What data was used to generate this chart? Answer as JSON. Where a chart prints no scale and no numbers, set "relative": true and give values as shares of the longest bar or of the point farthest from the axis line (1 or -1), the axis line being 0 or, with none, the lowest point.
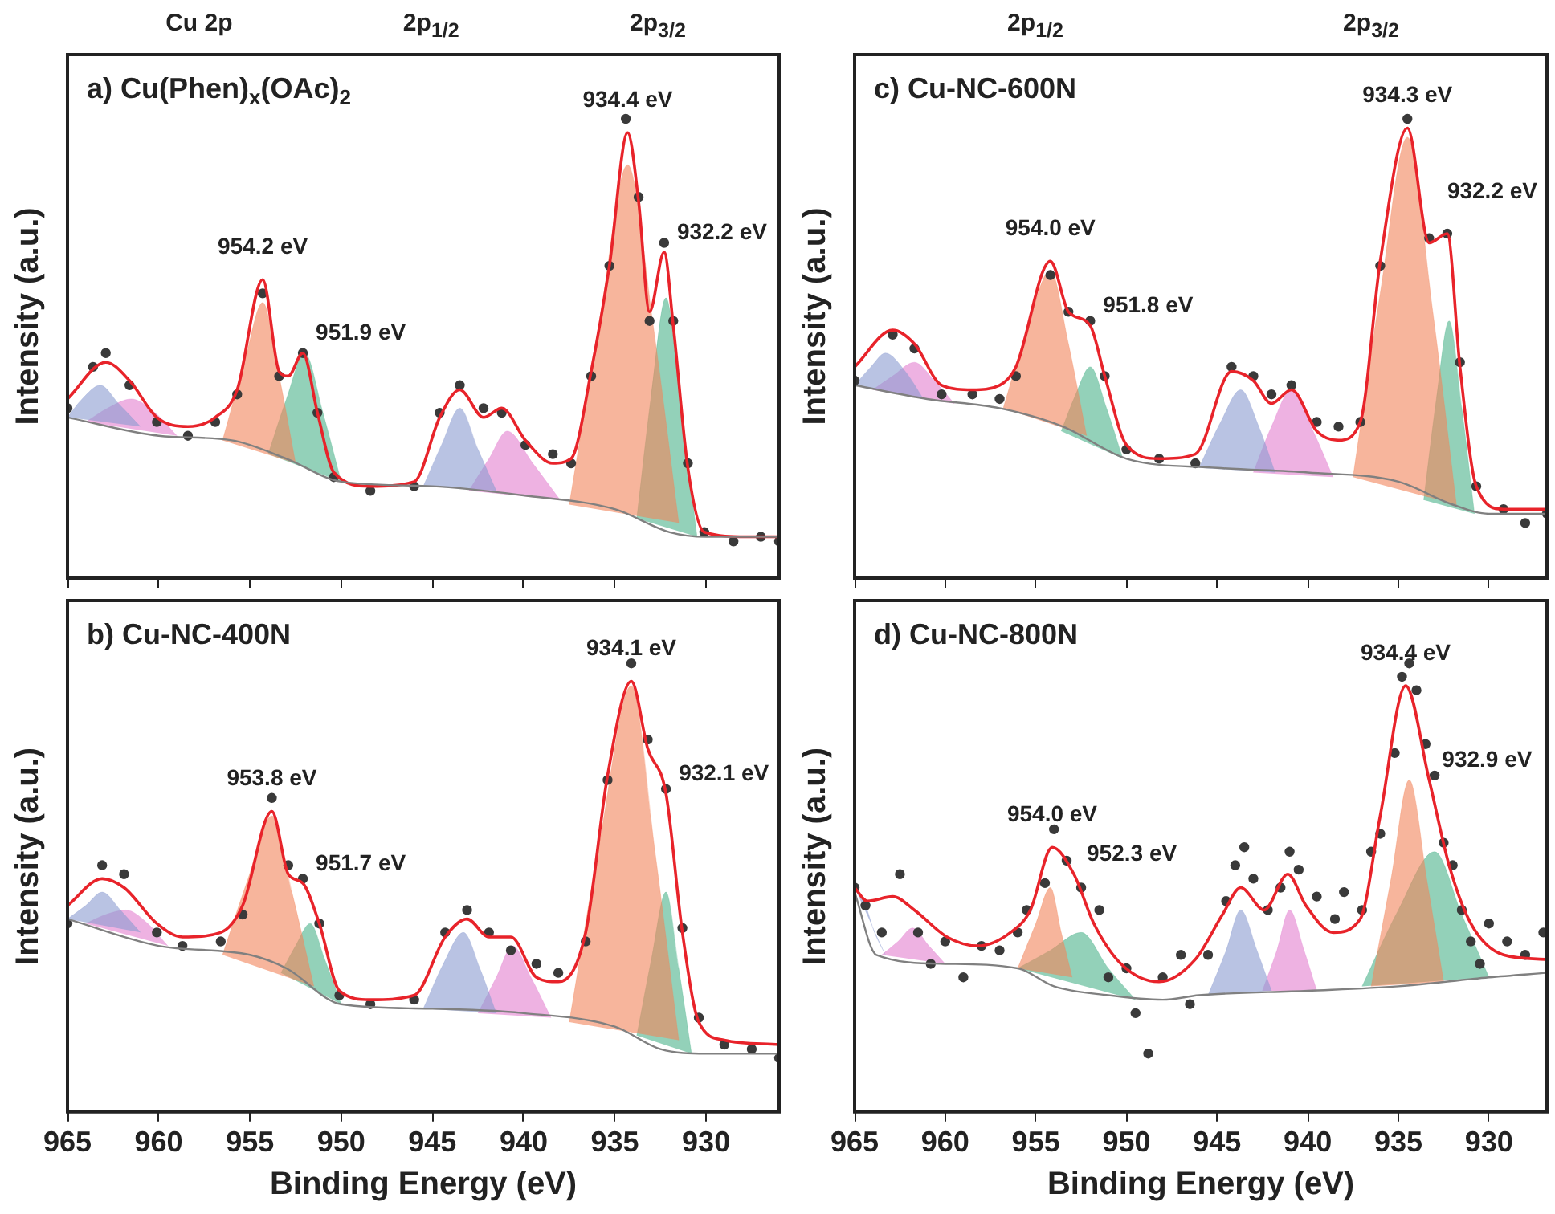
{
  "chart_data": [
    {
      "type": "line",
      "title": "a) Cu(Phen)$_{x}$(OAc)$_{2}$",
      "ylabel": "Intensity (a.u.)",
      "relative": true,
      "tick_labels": false,
      "xlim": [
        965,
        926
      ],
      "xticks": [
        965,
        960,
        955,
        950,
        945,
        940,
        935,
        930
      ],
      "annotations": [
        "Cu 2p",
        "2p$_{1/2}$",
        "2p$_{3/2}$",
        {
          "text": "954.2 eV",
          "x": 954.3,
          "y": 0.65
        },
        {
          "text": "951.9 eV",
          "x": 952.1,
          "y": 0.49
        },
        {
          "text": "934.4 eV",
          "x": 934.3,
          "y": 0.97
        },
        {
          "text": "932.2 eV",
          "x": 932.3,
          "y": 0.71
        }
      ],
      "series": [
        {
          "type": "line",
          "color": "#808080",
          "x": [
            965,
            960,
            956,
            953,
            950,
            945,
            940,
            935,
            932,
            930,
            926
          ],
          "values": [
            0.35,
            0.31,
            0.3,
            0.26,
            0.21,
            0.2,
            0.18,
            0.15,
            0.1,
            0.09,
            0.09
          ]
        },
        {
          "type": "area",
          "color": "#8a9bd0",
          "x": [
            965,
            964.2,
            963.2,
            962.2,
            961
          ],
          "values": [
            0.35,
            0.39,
            0.42,
            0.38,
            0.33
          ]
        },
        {
          "type": "area",
          "color": "#e27fcf",
          "x": [
            964,
            962.8,
            961.5,
            960.2,
            959
          ],
          "values": [
            0.34,
            0.37,
            0.39,
            0.36,
            0.31
          ]
        },
        {
          "type": "area",
          "color": "#f2835a",
          "x": [
            956.5,
            955.3,
            954.3,
            953.4,
            952.5
          ],
          "values": [
            0.3,
            0.47,
            0.6,
            0.44,
            0.25
          ]
        },
        {
          "type": "area",
          "color": "#4bb38a",
          "x": [
            954,
            953,
            952,
            951,
            950
          ],
          "values": [
            0.27,
            0.39,
            0.49,
            0.36,
            0.21
          ]
        },
        {
          "type": "area",
          "color": "#8a9bd0",
          "x": [
            945.5,
            944.5,
            943.5,
            942.5,
            941.5
          ],
          "values": [
            0.2,
            0.29,
            0.37,
            0.28,
            0.19
          ]
        },
        {
          "type": "area",
          "color": "#e27fcf",
          "x": [
            943,
            941.9,
            940.9,
            939.5,
            938
          ],
          "values": [
            0.19,
            0.26,
            0.32,
            0.25,
            0.17
          ]
        },
        {
          "type": "area",
          "color": "#f2835a",
          "x": [
            937.5,
            935.8,
            934.3,
            932.9,
            931.5
          ],
          "values": [
            0.16,
            0.57,
            0.9,
            0.55,
            0.12
          ]
        },
        {
          "type": "area",
          "color": "#4bb38a",
          "x": [
            933.8,
            933,
            932.2,
            931.4,
            930.5
          ],
          "values": [
            0.13,
            0.4,
            0.61,
            0.38,
            0.09
          ]
        },
        {
          "type": "scatter",
          "color": "#3a3a3a",
          "marker": "circle",
          "x": [
            965,
            963.6,
            962.9,
            961.6,
            960.1,
            958.4,
            956.9,
            955.7,
            954.3,
            953.4,
            952.1,
            951.3,
            950.4,
            948.4,
            946,
            944.6,
            943.5,
            942.2,
            941.2,
            939.9,
            938.4,
            937.4,
            936.3,
            935.3,
            934.4,
            933.7,
            933.1,
            932.3,
            931.8,
            931,
            930.1,
            928.5,
            927,
            926
          ],
          "values": [
            0.37,
            0.46,
            0.49,
            0.42,
            0.34,
            0.31,
            0.34,
            0.4,
            0.62,
            0.44,
            0.49,
            0.36,
            0.22,
            0.19,
            0.2,
            0.36,
            0.42,
            0.37,
            0.36,
            0.29,
            0.27,
            0.25,
            0.44,
            0.68,
            1.0,
            0.83,
            0.56,
            0.73,
            0.56,
            0.25,
            0.1,
            0.08,
            0.09,
            0.08
          ]
        },
        {
          "type": "line",
          "color": "#e8232a",
          "x": [
            965,
            962.9,
            961.6,
            960.1,
            958.4,
            956.9,
            955.7,
            954.3,
            953.4,
            952.9,
            952.1,
            951.3,
            950.4,
            948.4,
            946,
            944.6,
            943.5,
            942.2,
            941.2,
            939.9,
            938.4,
            937.4,
            936.3,
            935.3,
            934.3,
            933.7,
            933.1,
            932.3,
            931.8,
            931,
            930.1,
            927.8,
            926
          ],
          "values": [
            0.39,
            0.47,
            0.43,
            0.35,
            0.33,
            0.35,
            0.41,
            0.65,
            0.45,
            0.44,
            0.49,
            0.36,
            0.23,
            0.2,
            0.21,
            0.35,
            0.41,
            0.35,
            0.37,
            0.3,
            0.25,
            0.26,
            0.45,
            0.68,
            0.97,
            0.82,
            0.58,
            0.71,
            0.55,
            0.24,
            0.1,
            0.09,
            0.09
          ]
        }
      ]
    },
    {
      "type": "line",
      "title": "b) Cu-NC-400N",
      "xlabel": "Binding Energy (eV)",
      "ylabel": "Intensity (a.u.)",
      "relative": true,
      "tick_labels": "x",
      "xlim": [
        965,
        926
      ],
      "xticks": [
        965,
        960,
        955,
        950,
        945,
        940,
        935,
        930
      ],
      "annotations": [
        {
          "text": "953.8 eV",
          "x": 953.8,
          "y": 0.67
        },
        {
          "text": "951.7 eV",
          "x": 952.1,
          "y": 0.51
        },
        {
          "text": "934.1 eV",
          "x": 934.1,
          "y": 0.96
        },
        {
          "text": "932.1 eV",
          "x": 932.2,
          "y": 0.71
        }
      ],
      "series": [
        {
          "type": "line",
          "color": "#808080",
          "x": [
            965,
            960,
            955,
            953,
            950,
            945,
            940,
            935,
            932.5,
            930,
            926
          ],
          "values": [
            0.43,
            0.37,
            0.35,
            0.32,
            0.24,
            0.23,
            0.22,
            0.19,
            0.14,
            0.13,
            0.13
          ]
        },
        {
          "type": "area",
          "color": "#8a9bd0",
          "x": [
            965,
            964,
            963.1,
            962.1,
            961
          ],
          "values": [
            0.43,
            0.46,
            0.49,
            0.45,
            0.4
          ]
        },
        {
          "type": "area",
          "color": "#e27fcf",
          "x": [
            964,
            962.9,
            961.8,
            960.6,
            959.5
          ],
          "values": [
            0.42,
            0.44,
            0.45,
            0.42,
            0.37
          ]
        },
        {
          "type": "area",
          "color": "#f2835a",
          "x": [
            956.5,
            955.1,
            953.8,
            952.7,
            951.5
          ],
          "values": [
            0.35,
            0.52,
            0.66,
            0.49,
            0.28
          ]
        },
        {
          "type": "area",
          "color": "#4bb38a",
          "x": [
            953.3,
            952.5,
            951.7,
            950.9,
            950
          ],
          "values": [
            0.31,
            0.37,
            0.42,
            0.34,
            0.24
          ]
        },
        {
          "type": "area",
          "color": "#8a9bd0",
          "x": [
            945.5,
            944.4,
            943.3,
            942.4,
            941.5
          ],
          "values": [
            0.23,
            0.33,
            0.4,
            0.32,
            0.22
          ]
        },
        {
          "type": "area",
          "color": "#e27fcf",
          "x": [
            942.5,
            941.5,
            940.6,
            939.6,
            938.5
          ],
          "values": [
            0.22,
            0.3,
            0.37,
            0.3,
            0.21
          ]
        },
        {
          "type": "area",
          "color": "#f2835a",
          "x": [
            937.5,
            935.8,
            934.1,
            932.8,
            931.5
          ],
          "values": [
            0.2,
            0.61,
            0.95,
            0.58,
            0.16
          ]
        },
        {
          "type": "area",
          "color": "#4bb38a",
          "x": [
            933.8,
            933,
            932.2,
            931.5,
            930.8
          ],
          "values": [
            0.17,
            0.34,
            0.49,
            0.32,
            0.13
          ]
        },
        {
          "type": "scatter",
          "color": "#3a3a3a",
          "marker": "circle",
          "x": [
            965,
            963.1,
            961.9,
            960.1,
            958.7,
            956.6,
            955.4,
            953.8,
            952.9,
            952.1,
            951.2,
            950.1,
            948.4,
            946,
            944.3,
            943.1,
            941.9,
            940.7,
            939.3,
            938.1,
            936.6,
            935.4,
            934.1,
            933.2,
            932.2,
            931.3,
            930.4,
            929,
            927.5,
            926
          ],
          "values": [
            0.42,
            0.55,
            0.53,
            0.4,
            0.37,
            0.38,
            0.44,
            0.7,
            0.55,
            0.52,
            0.42,
            0.26,
            0.24,
            0.25,
            0.4,
            0.45,
            0.4,
            0.36,
            0.33,
            0.31,
            0.38,
            0.74,
            1.0,
            0.83,
            0.72,
            0.41,
            0.21,
            0.15,
            0.14,
            0.12
          ]
        },
        {
          "type": "line",
          "color": "#e8232a",
          "x": [
            965,
            963.1,
            961.9,
            960.1,
            958.7,
            956.6,
            955.4,
            953.8,
            952.9,
            952.1,
            951.2,
            950.1,
            948.4,
            946,
            944.3,
            943.1,
            941.9,
            940.7,
            939.3,
            938.1,
            936.6,
            935.4,
            934.1,
            933.2,
            932.2,
            931.3,
            930.4,
            929,
            926
          ],
          "values": [
            0.46,
            0.52,
            0.5,
            0.42,
            0.39,
            0.4,
            0.46,
            0.67,
            0.53,
            0.51,
            0.42,
            0.27,
            0.25,
            0.26,
            0.39,
            0.43,
            0.39,
            0.39,
            0.3,
            0.29,
            0.4,
            0.75,
            0.96,
            0.81,
            0.71,
            0.4,
            0.2,
            0.16,
            0.15
          ]
        }
      ]
    },
    {
      "type": "line",
      "title": "c) Cu-NC-600N",
      "ylabel": "Intensity (a.u.)",
      "relative": true,
      "tick_labels": false,
      "xlim": [
        965,
        926.8
      ],
      "xticks": [
        965,
        960,
        955,
        950,
        945,
        940,
        935,
        930
      ],
      "annotations": [
        "2p$_{1/2}$",
        "2p$_{3/2}$",
        {
          "text": "954.0 eV",
          "x": 954.2,
          "y": 0.69
        },
        {
          "text": "951.8 eV",
          "x": 952.0,
          "y": 0.55
        },
        {
          "text": "934.3 eV",
          "x": 934.5,
          "y": 0.98
        },
        {
          "text": "932.2 eV",
          "x": 932.3,
          "y": 0.75
        }
      ],
      "series": [
        {
          "type": "line",
          "color": "#808080",
          "x": [
            965,
            961,
            957,
            953.5,
            950,
            945,
            940,
            935,
            932,
            930,
            926.8
          ],
          "values": [
            0.42,
            0.39,
            0.37,
            0.33,
            0.26,
            0.24,
            0.23,
            0.21,
            0.16,
            0.14,
            0.14
          ]
        },
        {
          "type": "area",
          "color": "#8a9bd0",
          "x": [
            965,
            964.1,
            963.3,
            962.2,
            961.2
          ],
          "values": [
            0.42,
            0.46,
            0.49,
            0.45,
            0.39
          ]
        },
        {
          "type": "area",
          "color": "#e27fcf",
          "x": [
            964,
            962.9,
            961.7,
            960.6,
            959.5
          ],
          "values": [
            0.41,
            0.44,
            0.47,
            0.43,
            0.38
          ]
        },
        {
          "type": "area",
          "color": "#f2835a",
          "x": [
            956.8,
            955.5,
            954.2,
            953.2,
            952.2
          ],
          "values": [
            0.37,
            0.54,
            0.67,
            0.51,
            0.31
          ]
        },
        {
          "type": "area",
          "color": "#4bb38a",
          "x": [
            953.6,
            952.8,
            952,
            951.1,
            950.2
          ],
          "values": [
            0.32,
            0.4,
            0.46,
            0.37,
            0.26
          ]
        },
        {
          "type": "area",
          "color": "#8a9bd0",
          "x": [
            946,
            944.8,
            943.7,
            942.7,
            941.8
          ],
          "values": [
            0.24,
            0.34,
            0.41,
            0.33,
            0.23
          ]
        },
        {
          "type": "area",
          "color": "#e27fcf",
          "x": [
            943,
            942,
            940.9,
            939.7,
            938.6
          ],
          "values": [
            0.23,
            0.33,
            0.41,
            0.32,
            0.22
          ]
        },
        {
          "type": "area",
          "color": "#f2835a",
          "x": [
            937.5,
            936,
            934.5,
            933.1,
            931.8
          ],
          "values": [
            0.22,
            0.62,
            0.96,
            0.58,
            0.16
          ]
        },
        {
          "type": "area",
          "color": "#4bb38a",
          "x": [
            933.6,
            932.9,
            932.2,
            931.5,
            930.8
          ],
          "values": [
            0.17,
            0.39,
            0.56,
            0.37,
            0.14
          ]
        },
        {
          "type": "scatter",
          "color": "#3a3a3a",
          "marker": "circle",
          "x": [
            965,
            962.9,
            961.7,
            960.2,
            958.5,
            957,
            956.1,
            954.2,
            953.2,
            952,
            951.2,
            950,
            948.2,
            946.2,
            944.2,
            943,
            942,
            940.9,
            939.5,
            938.3,
            937.1,
            936,
            934.5,
            933.3,
            932.3,
            931.6,
            930.7,
            929.2,
            928,
            926.8
          ],
          "values": [
            0.43,
            0.53,
            0.5,
            0.4,
            0.4,
            0.39,
            0.44,
            0.66,
            0.58,
            0.56,
            0.44,
            0.28,
            0.26,
            0.25,
            0.46,
            0.44,
            0.4,
            0.42,
            0.34,
            0.33,
            0.34,
            0.68,
            1.0,
            0.74,
            0.75,
            0.47,
            0.2,
            0.15,
            0.12,
            0.14
          ]
        },
        {
          "type": "line",
          "color": "#e8232a",
          "x": [
            965,
            962.9,
            961.7,
            960.2,
            958.5,
            957,
            956.1,
            954.2,
            953.2,
            952,
            951.2,
            950,
            948.2,
            946.2,
            944.2,
            943,
            942,
            940.9,
            939.5,
            938.3,
            937.1,
            936,
            934.5,
            933.3,
            932.3,
            931.6,
            930.7,
            929.2,
            926.8
          ],
          "values": [
            0.46,
            0.54,
            0.51,
            0.42,
            0.41,
            0.42,
            0.46,
            0.69,
            0.58,
            0.55,
            0.44,
            0.29,
            0.26,
            0.27,
            0.45,
            0.43,
            0.38,
            0.41,
            0.32,
            0.3,
            0.34,
            0.69,
            0.98,
            0.73,
            0.75,
            0.46,
            0.2,
            0.15,
            0.15
          ]
        }
      ]
    },
    {
      "type": "line",
      "title": "d) Cu-NC-800N",
      "xlabel": "Binding Energy (eV)",
      "ylabel": "Intensity (a.u.)",
      "relative": true,
      "tick_labels": "x",
      "xlim": [
        965,
        926.8
      ],
      "xticks": [
        965,
        960,
        955,
        950,
        945,
        940,
        935,
        930
      ],
      "annotations": [
        {
          "text": "954.0 eV",
          "x": 954.1,
          "y": 0.59
        },
        {
          "text": "952.3 eV",
          "x": 952.9,
          "y": 0.53
        },
        {
          "text": "934.4 eV",
          "x": 934.6,
          "y": 0.95
        },
        {
          "text": "932.9 eV",
          "x": 933.3,
          "y": 0.74
        }
      ],
      "series": [
        {
          "type": "line",
          "color": "#808080",
          "x": [
            965,
            963.8,
            960,
            956,
            954,
            951,
            948,
            946,
            940,
            935,
            930,
            926.8
          ],
          "values": [
            0.49,
            0.35,
            0.33,
            0.32,
            0.28,
            0.26,
            0.25,
            0.26,
            0.27,
            0.28,
            0.3,
            0.31
          ]
        },
        {
          "type": "area",
          "color": "#8a9bd0",
          "x": [
            965,
            964.7,
            964.4,
            963.9,
            963.3
          ],
          "values": [
            0.5,
            0.48,
            0.46,
            0.4,
            0.35
          ]
        },
        {
          "type": "area",
          "color": "#e27fcf",
          "x": [
            963.5,
            962.6,
            961.8,
            960.9,
            960
          ],
          "values": [
            0.35,
            0.38,
            0.41,
            0.37,
            0.33
          ]
        },
        {
          "type": "area",
          "color": "#f2835a",
          "x": [
            956,
            955,
            954.2,
            953.6,
            953
          ],
          "values": [
            0.32,
            0.42,
            0.5,
            0.4,
            0.3
          ]
        },
        {
          "type": "area",
          "color": "#4bb38a",
          "x": [
            956,
            954.2,
            952.5,
            951,
            949.5
          ],
          "values": [
            0.32,
            0.36,
            0.4,
            0.32,
            0.25
          ]
        },
        {
          "type": "area",
          "color": "#8a9bd0",
          "x": [
            945.5,
            944.5,
            943.7,
            942.8,
            942
          ],
          "values": [
            0.26,
            0.36,
            0.45,
            0.36,
            0.27
          ]
        },
        {
          "type": "area",
          "color": "#e27fcf",
          "x": [
            942.5,
            941.7,
            941,
            940.2,
            939.5
          ],
          "values": [
            0.27,
            0.36,
            0.45,
            0.36,
            0.27
          ]
        },
        {
          "type": "area",
          "color": "#f2835a",
          "x": [
            936.5,
            935.4,
            934.4,
            933.4,
            932.5
          ],
          "values": [
            0.28,
            0.52,
            0.74,
            0.51,
            0.29
          ]
        },
        {
          "type": "area",
          "color": "#4bb38a",
          "x": [
            937,
            935,
            933,
            931.5,
            930
          ],
          "values": [
            0.28,
            0.45,
            0.58,
            0.44,
            0.3
          ]
        },
        {
          "type": "scatter",
          "color": "#3a3a3a",
          "marker": "circle",
          "x": [
            965,
            964.4,
            963.5,
            962.5,
            961.5,
            960.8,
            960,
            959,
            958,
            957,
            956,
            955.5,
            954.5,
            954,
            953.3,
            952.5,
            951.5,
            951,
            950,
            949.5,
            948.8,
            948,
            947,
            946.5,
            945.5,
            944.5,
            944,
            943.5,
            943,
            942.2,
            941.5,
            941,
            940.5,
            939.5,
            938.5,
            938,
            937,
            936.5,
            936,
            935.2,
            934.8,
            934.4,
            934,
            933.5,
            933,
            932.5,
            932,
            931.5,
            931,
            930.5,
            930,
            929,
            928,
            927
          ],
          "values": [
            0.5,
            0.46,
            0.4,
            0.53,
            0.4,
            0.33,
            0.38,
            0.3,
            0.37,
            0.36,
            0.4,
            0.45,
            0.51,
            0.63,
            0.56,
            0.5,
            0.45,
            0.3,
            0.32,
            0.22,
            0.13,
            0.3,
            0.35,
            0.24,
            0.35,
            0.47,
            0.55,
            0.59,
            0.52,
            0.45,
            0.5,
            0.58,
            0.54,
            0.48,
            0.43,
            0.49,
            0.45,
            0.58,
            0.62,
            0.8,
            0.97,
            1.0,
            0.94,
            0.82,
            0.75,
            0.6,
            0.55,
            0.45,
            0.38,
            0.33,
            0.42,
            0.38,
            0.35,
            0.4
          ]
        },
        {
          "type": "line",
          "color": "#e8232a",
          "x": [
            965,
            964.3,
            962.9,
            961.7,
            959.9,
            958.2,
            956.4,
            955.3,
            954.1,
            952.9,
            951.8,
            950.3,
            948.2,
            946.2,
            944.7,
            943.7,
            942.4,
            941.1,
            940.1,
            938.6,
            937.1,
            936,
            934.6,
            933.3,
            932.2,
            931,
            929.2,
            926.8
          ],
          "values": [
            0.5,
            0.47,
            0.48,
            0.45,
            0.39,
            0.37,
            0.4,
            0.45,
            0.59,
            0.53,
            0.42,
            0.33,
            0.29,
            0.34,
            0.44,
            0.5,
            0.45,
            0.53,
            0.46,
            0.4,
            0.43,
            0.66,
            0.95,
            0.74,
            0.55,
            0.42,
            0.35,
            0.34
          ]
        }
      ]
    }
  ]
}
